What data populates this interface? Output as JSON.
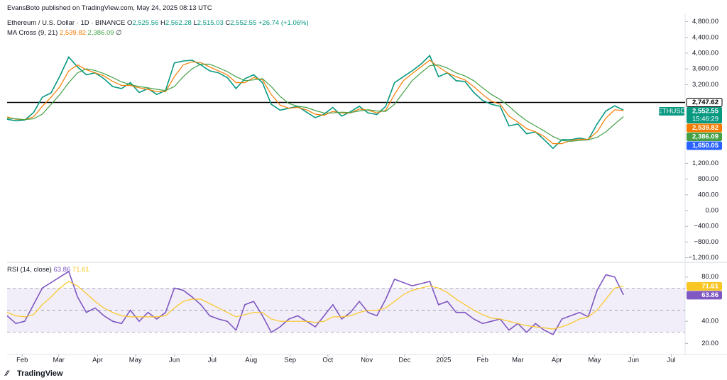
{
  "header": {
    "publisher": "EvansBoto published on TradingView.com, May 24, 2025 08:13 UTC",
    "symbol": "Ethereum / U.S. Dollar · 1D · BINANCE",
    "ohlc": [
      {
        "key": "O",
        "value": "2,525.56"
      },
      {
        "key": "H",
        "value": "2,562.28"
      },
      {
        "key": "L",
        "value": "2,515.03"
      },
      {
        "key": "C",
        "value": "2,552.55"
      }
    ],
    "change": "+26.74 (+1.06%)",
    "indicator": "MA Cross (9, 21)",
    "indicator_extra": "∅"
  },
  "chart_data": [
    {
      "type": "line",
      "symbol": "ETHUSD",
      "countdown": "15:46:29",
      "x": [
        -12,
        -5,
        2,
        9,
        16,
        23,
        30,
        37,
        44,
        51,
        58,
        65,
        72,
        79,
        86,
        93,
        100,
        107,
        114,
        121,
        128,
        135,
        142,
        149,
        156,
        163,
        170,
        177,
        184,
        191,
        198,
        205,
        212,
        219,
        226,
        233,
        240,
        247,
        254,
        261,
        268,
        275,
        282,
        289,
        296,
        303,
        310,
        317,
        324,
        331,
        338,
        345,
        352,
        359,
        366,
        373,
        380,
        387,
        394,
        401,
        408,
        415,
        422,
        429,
        436,
        443,
        450,
        457,
        464,
        471,
        478
      ],
      "xlim": [
        -12,
        527
      ],
      "ylim": [
        -1280,
        4990
      ],
      "yticks": [
        {
          "value": 4800,
          "label": "4,800.00"
        },
        {
          "value": 4400,
          "label": "4,400.00"
        },
        {
          "value": 4000,
          "label": "4,000.00"
        },
        {
          "value": 3600,
          "label": "3,600.00"
        },
        {
          "value": 3200,
          "label": "3,200.00"
        },
        {
          "value": 1200,
          "label": "1,200.00"
        },
        {
          "value": 800,
          "label": "800.00"
        },
        {
          "value": 400,
          "label": "400.00"
        },
        {
          "value": 0,
          "label": "0.00"
        },
        {
          "value": -400,
          "label": "−400.00"
        },
        {
          "value": -800,
          "label": "−800.00"
        },
        {
          "value": -1200,
          "label": "−1,200.00"
        }
      ],
      "hline": {
        "value": 2747.62,
        "label": "2,747.62"
      },
      "level": {
        "value": 1650.05,
        "label": "1,650.05",
        "color": "#2962ff"
      },
      "series": [
        {
          "name": "ETHUSD",
          "color": "#089981",
          "last_label": "2,552.55",
          "values": [
            2320,
            2280,
            2300,
            2490,
            2880,
            2990,
            3420,
            3900,
            3650,
            3450,
            3500,
            3350,
            3150,
            3100,
            3250,
            3000,
            3100,
            2950,
            3050,
            3750,
            3800,
            3820,
            3700,
            3550,
            3500,
            3380,
            3100,
            3350,
            3450,
            3250,
            2700,
            2550,
            2600,
            2650,
            2500,
            2360,
            2450,
            2620,
            2400,
            2510,
            2650,
            2480,
            2440,
            2650,
            3250,
            3400,
            3550,
            3720,
            3940,
            3400,
            3500,
            3300,
            3280,
            3000,
            2800,
            2700,
            2650,
            2150,
            2200,
            1950,
            2000,
            1800,
            1580,
            1800,
            1800,
            1840,
            1800,
            2200,
            2530,
            2660,
            2552.55
          ]
        },
        {
          "color": "#f57c00",
          "last_label": "2,539.82",
          "values": [
            2380,
            2320,
            2310,
            2380,
            2650,
            2880,
            3150,
            3550,
            3700,
            3580,
            3500,
            3420,
            3280,
            3180,
            3180,
            3120,
            3080,
            3020,
            3020,
            3400,
            3700,
            3780,
            3760,
            3650,
            3550,
            3450,
            3250,
            3250,
            3380,
            3320,
            2950,
            2680,
            2600,
            2620,
            2560,
            2450,
            2420,
            2520,
            2480,
            2480,
            2580,
            2550,
            2480,
            2550,
            2950,
            3300,
            3480,
            3650,
            3820,
            3650,
            3500,
            3400,
            3320,
            3150,
            2950,
            2780,
            2700,
            2400,
            2250,
            2080,
            2000,
            1880,
            1700,
            1700,
            1780,
            1810,
            1810,
            2000,
            2350,
            2560,
            2539.82
          ]
        },
        {
          "color": "#43a047",
          "last_label": "2,386.09",
          "values": [
            2350,
            2330,
            2310,
            2330,
            2450,
            2700,
            2950,
            3250,
            3500,
            3600,
            3560,
            3480,
            3380,
            3270,
            3200,
            3150,
            3120,
            3080,
            3050,
            3150,
            3400,
            3600,
            3720,
            3720,
            3630,
            3530,
            3400,
            3300,
            3320,
            3350,
            3150,
            2900,
            2720,
            2650,
            2620,
            2540,
            2480,
            2480,
            2500,
            2490,
            2530,
            2560,
            2530,
            2520,
            2700,
            3000,
            3300,
            3500,
            3680,
            3700,
            3620,
            3500,
            3420,
            3300,
            3120,
            2950,
            2820,
            2650,
            2450,
            2280,
            2150,
            2020,
            1880,
            1780,
            1760,
            1780,
            1800,
            1860,
            2000,
            2200,
            2386.09
          ]
        }
      ]
    },
    {
      "type": "line",
      "title": "RSI (14, close)",
      "x": [
        -12,
        -5,
        2,
        9,
        16,
        23,
        30,
        37,
        44,
        51,
        58,
        65,
        72,
        79,
        86,
        93,
        100,
        107,
        114,
        121,
        128,
        135,
        142,
        149,
        156,
        163,
        170,
        177,
        184,
        191,
        198,
        205,
        212,
        219,
        226,
        233,
        240,
        247,
        254,
        261,
        268,
        275,
        282,
        289,
        296,
        303,
        310,
        317,
        324,
        331,
        338,
        345,
        352,
        359,
        366,
        373,
        380,
        387,
        394,
        401,
        408,
        415,
        422,
        429,
        436,
        443,
        450,
        457,
        464,
        471,
        478
      ],
      "xlim": [
        -12,
        527
      ],
      "ylim": [
        10,
        92
      ],
      "yticks": [
        {
          "value": 20,
          "label": "20.00"
        },
        {
          "value": 40,
          "label": "40.00"
        },
        {
          "value": 80,
          "label": "80.00"
        }
      ],
      "bands": [
        30,
        50,
        70
      ],
      "xticks": [
        {
          "value": 0,
          "label": "Feb"
        },
        {
          "value": 29,
          "label": "Mar"
        },
        {
          "value": 60,
          "label": "Apr"
        },
        {
          "value": 90,
          "label": "May"
        },
        {
          "value": 121,
          "label": "Jun"
        },
        {
          "value": 151,
          "label": "Jul"
        },
        {
          "value": 182,
          "label": "Aug"
        },
        {
          "value": 213,
          "label": "Sep"
        },
        {
          "value": 243,
          "label": "Oct"
        },
        {
          "value": 274,
          "label": "Nov"
        },
        {
          "value": 304,
          "label": "Dec"
        },
        {
          "value": 335,
          "label": "2025"
        },
        {
          "value": 366,
          "label": "Feb"
        },
        {
          "value": 394,
          "label": "Mar"
        },
        {
          "value": 425,
          "label": "Apr"
        },
        {
          "value": 455,
          "label": "May"
        },
        {
          "value": 486,
          "label": "Jun"
        },
        {
          "value": 516,
          "label": "Jul"
        }
      ],
      "series": [
        {
          "color": "#7e57c2",
          "last_label": "63.86",
          "values": [
            45,
            38,
            40,
            55,
            70,
            75,
            80,
            85,
            62,
            48,
            52,
            45,
            40,
            38,
            50,
            40,
            48,
            42,
            48,
            70,
            68,
            62,
            55,
            45,
            42,
            40,
            32,
            55,
            58,
            45,
            30,
            35,
            42,
            45,
            40,
            35,
            45,
            55,
            42,
            48,
            58,
            48,
            45,
            60,
            78,
            75,
            72,
            74,
            76,
            55,
            58,
            48,
            48,
            42,
            38,
            40,
            42,
            32,
            38,
            30,
            38,
            32,
            28,
            42,
            45,
            48,
            44,
            68,
            82,
            80,
            63.86
          ]
        },
        {
          "color": "#f9c623",
          "last_label": "71.61",
          "values": [
            48,
            45,
            44,
            46,
            55,
            62,
            70,
            76,
            72,
            65,
            58,
            52,
            48,
            45,
            44,
            44,
            44,
            44,
            45,
            52,
            58,
            60,
            60,
            56,
            52,
            48,
            44,
            46,
            48,
            48,
            42,
            40,
            40,
            40,
            40,
            39,
            40,
            44,
            44,
            45,
            48,
            50,
            50,
            52,
            58,
            64,
            68,
            70,
            72,
            70,
            66,
            60,
            55,
            50,
            46,
            43,
            42,
            40,
            38,
            36,
            35,
            34,
            33,
            35,
            38,
            42,
            44,
            50,
            60,
            70,
            71.61
          ]
        }
      ]
    }
  ],
  "footer": {
    "brand": "TradingView"
  }
}
